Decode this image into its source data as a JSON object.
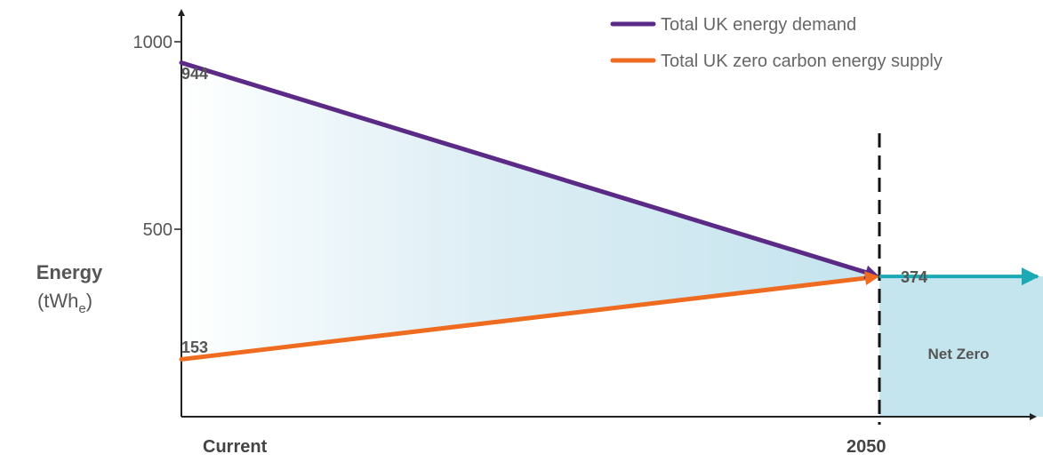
{
  "chart_data": {
    "type": "line",
    "x": [
      "Current",
      "2050"
    ],
    "ylabel": "Energy",
    "ylabel_unit_prefix": "(tWh",
    "ylabel_unit_sub": "e",
    "ylabel_unit_suffix": ")",
    "ylim": [
      0,
      1100
    ],
    "yticks": [
      {
        "value": 500,
        "label": "500"
      },
      {
        "value": 1000,
        "label": "1000"
      }
    ],
    "series": [
      {
        "name": "Total UK energy demand",
        "color": "#5b2a86",
        "values": [
          944,
          374
        ],
        "labels": [
          "944",
          ""
        ]
      },
      {
        "name": "Total UK zero carbon energy supply",
        "color": "#ee6b20",
        "values": [
          153,
          374
        ],
        "labels": [
          "153",
          ""
        ]
      }
    ],
    "net_zero": {
      "value": 374,
      "label": "374",
      "region_label": "Net Zero",
      "color": "#1aa9b5",
      "fill": "#c4e4ee"
    },
    "marker_line": {
      "x": "2050",
      "style": "dashed"
    },
    "legend_position": "top-right"
  }
}
